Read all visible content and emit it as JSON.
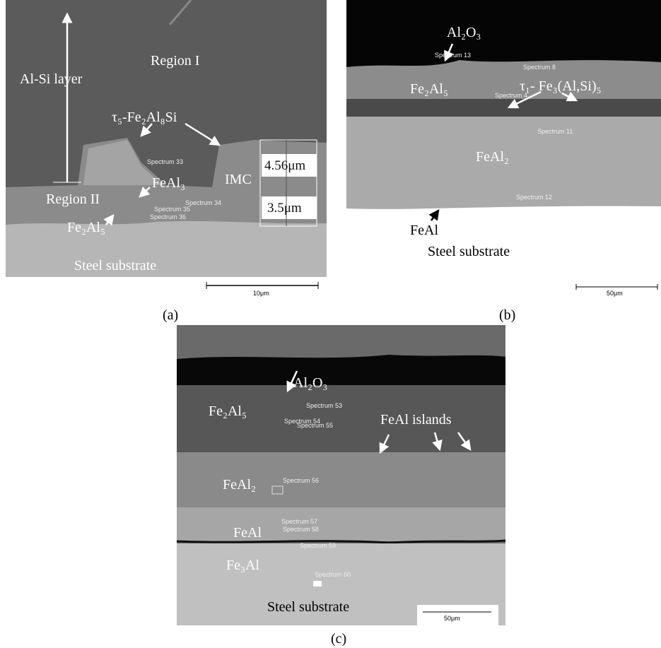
{
  "panels": [
    {
      "label": "(a)",
      "scale_bar": "10μm",
      "annotations": [
        "Region I",
        "Al-Si layer",
        "τ₅-Fe₂Al₈Si",
        "FeAl₃",
        "IMC",
        "Region II",
        "Fe₂Al₅",
        "Steel substrate"
      ],
      "measurements": [
        "4.56μm",
        "3.5μm"
      ],
      "spectra": [
        "Spectrum 33",
        "Spectrum 34",
        "Spectrum 35",
        "Spectrum 36"
      ]
    },
    {
      "label": "(b)",
      "scale_bar": "50μm",
      "annotations": [
        "Al₂O₃",
        "Fe₂Al₅",
        "τ₁- Fe₃(Al,Si)₅",
        "FeAl₂",
        "FeAl",
        "Steel substrate"
      ],
      "spectra": [
        "Spectrum 13",
        "Spectrum 8",
        "Spectrum 4",
        "Spectrum 11",
        "Spectrum 12"
      ]
    },
    {
      "label": "(c)",
      "scale_bar": "50μm",
      "annotations": [
        "Al₂O₃",
        "Fe₂Al₅",
        "FeAl islands",
        "FeAl₂",
        "FeAl",
        "Fe₃Al",
        "Steel substrate"
      ],
      "spectra": [
        "Spectrum 53",
        "Spectrum 54",
        "Spectrum 55",
        "Spectrum 56",
        "Spectrum 57",
        "Spectrum 58",
        "Spectrum 59",
        "Spectrum 60"
      ]
    }
  ]
}
